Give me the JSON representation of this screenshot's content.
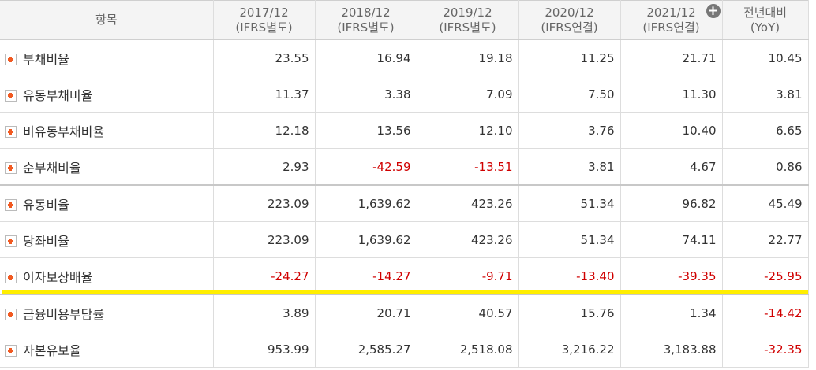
{
  "table": {
    "header": {
      "item": "항목",
      "periods": [
        {
          "year": "2017/12",
          "basis": "(IFRS별도)"
        },
        {
          "year": "2018/12",
          "basis": "(IFRS별도)"
        },
        {
          "year": "2019/12",
          "basis": "(IFRS별도)"
        },
        {
          "year": "2020/12",
          "basis": "(IFRS연결)"
        },
        {
          "year": "2021/12",
          "basis": "(IFRS연결)"
        }
      ],
      "yoy_line1": "전년대비",
      "yoy_line2": "(YoY)"
    },
    "rows": [
      {
        "label": "부채비율",
        "values": [
          "23.55",
          "16.94",
          "19.18",
          "11.25",
          "21.71",
          "10.45"
        ]
      },
      {
        "label": "유동부채비율",
        "values": [
          "11.37",
          "3.38",
          "7.09",
          "7.50",
          "11.30",
          "3.81"
        ]
      },
      {
        "label": "비유동부채비율",
        "values": [
          "12.18",
          "13.56",
          "12.10",
          "3.76",
          "10.40",
          "6.65"
        ]
      },
      {
        "label": "순부채비율",
        "values": [
          "2.93",
          "-42.59",
          "-13.51",
          "3.81",
          "4.67",
          "0.86"
        ]
      },
      {
        "label": "유동비율",
        "values": [
          "223.09",
          "1,639.62",
          "423.26",
          "51.34",
          "96.82",
          "45.49"
        ]
      },
      {
        "label": "당좌비율",
        "values": [
          "223.09",
          "1,639.62",
          "423.26",
          "51.34",
          "74.11",
          "22.77"
        ]
      },
      {
        "label": "이자보상배율",
        "values": [
          "-24.27",
          "-14.27",
          "-9.71",
          "-13.40",
          "-39.35",
          "-25.95"
        ]
      },
      {
        "label": "금융비용부담률",
        "values": [
          "3.89",
          "20.71",
          "40.57",
          "15.76",
          "1.34",
          "-14.42"
        ]
      },
      {
        "label": "자본유보율",
        "values": [
          "953.99",
          "2,585.27",
          "2,518.08",
          "3,216.22",
          "3,183.88",
          "-32.35"
        ]
      }
    ]
  },
  "colors": {
    "negative": "#d00000",
    "highlight": "#ffee00",
    "expand_icon": "#f15a22"
  },
  "icons": {
    "row_expand": "plus-box-icon",
    "header_add": "plus-circle-icon"
  }
}
